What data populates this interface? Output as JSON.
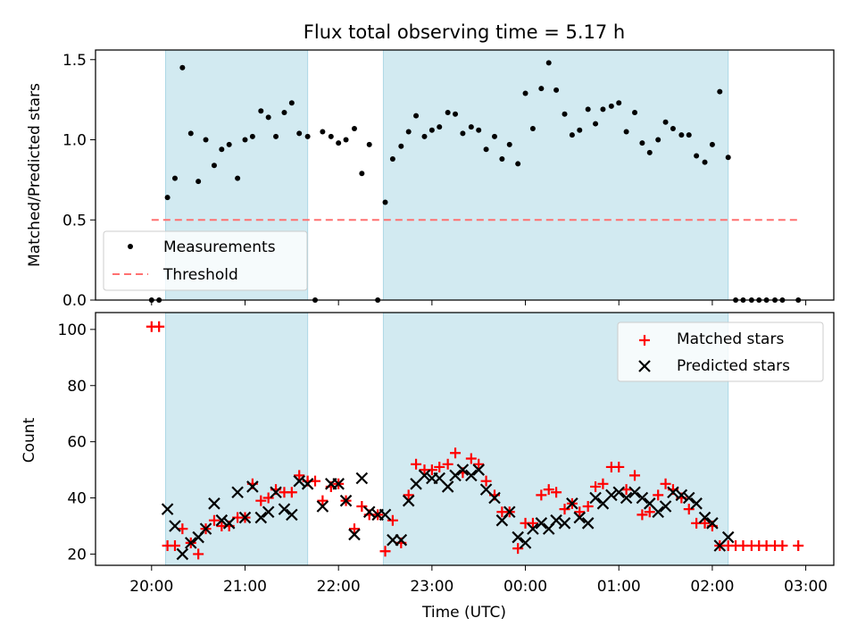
{
  "chart_data": {
    "title": "Flux total observing time = 5.17 h",
    "xlabel": "Time (UTC)",
    "xlim_hours": [
      19.4,
      27.3
    ],
    "xticks": [
      {
        "h": 20,
        "label": "20:00"
      },
      {
        "h": 21,
        "label": "21:00"
      },
      {
        "h": 22,
        "label": "22:00"
      },
      {
        "h": 23,
        "label": "23:00"
      },
      {
        "h": 24,
        "label": "00:00"
      },
      {
        "h": 25,
        "label": "01:00"
      },
      {
        "h": 26,
        "label": "02:00"
      },
      {
        "h": 27,
        "label": "03:00"
      }
    ],
    "shaded_intervals_hours": [
      [
        20.15,
        21.67
      ],
      [
        22.48,
        26.17
      ]
    ],
    "shade_color": "#add8e6",
    "panels": [
      {
        "type": "scatter",
        "ylabel": "Matched/Predicted stars",
        "ylim": [
          0,
          1.56
        ],
        "yticks": [
          {
            "v": 0.0,
            "label": "0.0"
          },
          {
            "v": 0.5,
            "label": "0.5"
          },
          {
            "v": 1.0,
            "label": "1.0"
          },
          {
            "v": 1.5,
            "label": "1.5"
          }
        ],
        "legend": {
          "position": "lower-left",
          "entries": [
            "Measurements",
            "Threshold"
          ]
        },
        "threshold": {
          "name": "Threshold",
          "value": 0.5,
          "x_range": [
            20.0,
            26.92
          ],
          "color": "#ff7070"
        },
        "series": [
          {
            "name": "Measurements",
            "color": "#000000",
            "x": [
              20.0,
              20.08,
              20.17,
              20.25,
              20.33,
              20.42,
              20.5,
              20.58,
              20.67,
              20.75,
              20.83,
              20.92,
              21.0,
              21.08,
              21.17,
              21.25,
              21.33,
              21.42,
              21.5,
              21.58,
              21.67,
              21.75,
              21.83,
              21.92,
              22.0,
              22.08,
              22.17,
              22.25,
              22.33,
              22.42,
              22.5,
              22.58,
              22.67,
              22.75,
              22.83,
              22.92,
              23.0,
              23.08,
              23.17,
              23.25,
              23.33,
              23.42,
              23.5,
              23.58,
              23.67,
              23.75,
              23.83,
              23.92,
              24.0,
              24.08,
              24.17,
              24.25,
              24.33,
              24.42,
              24.5,
              24.58,
              24.67,
              24.75,
              24.83,
              24.92,
              25.0,
              25.08,
              25.17,
              25.25,
              25.33,
              25.42,
              25.5,
              25.58,
              25.67,
              25.75,
              25.83,
              25.92,
              26.0,
              26.08,
              26.17,
              26.25,
              26.33,
              26.42,
              26.5,
              26.58,
              26.67,
              26.75,
              26.92
            ],
            "y": [
              0.0,
              0.0,
              0.64,
              0.76,
              1.45,
              1.04,
              0.74,
              1.0,
              0.84,
              0.94,
              0.97,
              0.76,
              1.0,
              1.02,
              1.18,
              1.14,
              1.02,
              1.17,
              1.23,
              1.04,
              1.02,
              0.0,
              1.05,
              1.02,
              0.98,
              1.0,
              1.07,
              0.79,
              0.97,
              0.0,
              0.61,
              0.88,
              0.96,
              1.05,
              1.15,
              1.02,
              1.06,
              1.08,
              1.17,
              1.16,
              1.04,
              1.08,
              1.06,
              0.94,
              1.02,
              0.88,
              0.97,
              0.85,
              1.29,
              1.07,
              1.32,
              1.48,
              1.31,
              1.16,
              1.03,
              1.06,
              1.19,
              1.1,
              1.19,
              1.21,
              1.23,
              1.05,
              1.17,
              0.98,
              0.92,
              1.0,
              1.11,
              1.07,
              1.03,
              1.03,
              0.9,
              0.86,
              0.97,
              1.3,
              0.89,
              0.0,
              0.0,
              0.0,
              0.0,
              0.0,
              0.0,
              0.0,
              0.0
            ]
          }
        ]
      },
      {
        "type": "scatter",
        "ylabel": "Count",
        "ylim": [
          16,
          106
        ],
        "yticks": [
          {
            "v": 20,
            "label": "20"
          },
          {
            "v": 40,
            "label": "40"
          },
          {
            "v": 60,
            "label": "60"
          },
          {
            "v": 80,
            "label": "80"
          },
          {
            "v": 100,
            "label": "100"
          }
        ],
        "legend": {
          "position": "upper-right",
          "entries": [
            "Matched stars",
            "Predicted stars"
          ]
        },
        "series": [
          {
            "name": "Matched stars",
            "marker": "plus",
            "color": "#ff0000",
            "x": [
              20.0,
              20.08,
              20.17,
              20.25,
              20.33,
              20.42,
              20.5,
              20.58,
              20.67,
              20.75,
              20.83,
              20.92,
              21.0,
              21.08,
              21.17,
              21.25,
              21.33,
              21.42,
              21.5,
              21.58,
              21.67,
              21.75,
              21.83,
              21.92,
              22.0,
              22.08,
              22.17,
              22.25,
              22.33,
              22.42,
              22.5,
              22.58,
              22.67,
              22.75,
              22.83,
              22.92,
              23.0,
              23.08,
              23.17,
              23.25,
              23.33,
              23.42,
              23.5,
              23.58,
              23.67,
              23.75,
              23.83,
              23.92,
              24.0,
              24.08,
              24.17,
              24.25,
              24.33,
              24.42,
              24.5,
              24.58,
              24.67,
              24.75,
              24.83,
              24.92,
              25.0,
              25.08,
              25.17,
              25.25,
              25.33,
              25.42,
              25.5,
              25.58,
              25.67,
              25.75,
              25.83,
              25.92,
              26.0,
              26.08,
              26.17,
              26.25,
              26.33,
              26.42,
              26.5,
              26.58,
              26.67,
              26.75,
              26.92
            ],
            "y": [
              101,
              101,
              23,
              23,
              29,
              24,
              20,
              29,
              32,
              30,
              30,
              33,
              33,
              45,
              39,
              40,
              43,
              42,
              42,
              48,
              46,
              46,
              39,
              44,
              45,
              39,
              29,
              37,
              34,
              34,
              21,
              32,
              24,
              41,
              52,
              50,
              50,
              51,
              52,
              56,
              49,
              54,
              52,
              46,
              41,
              35,
              35,
              22,
              31,
              31,
              41,
              43,
              42,
              36,
              38,
              35,
              37,
              44,
              45,
              51,
              51,
              43,
              48,
              34,
              35,
              41,
              45,
              43,
              40,
              36,
              31,
              31,
              30,
              23,
              23,
              23,
              23,
              23,
              23,
              23,
              23,
              23,
              23
            ]
          },
          {
            "name": "Predicted stars",
            "marker": "x",
            "color": "#000000",
            "x": [
              20.17,
              20.25,
              20.33,
              20.42,
              20.5,
              20.58,
              20.67,
              20.75,
              20.83,
              20.92,
              21.0,
              21.08,
              21.17,
              21.25,
              21.33,
              21.42,
              21.5,
              21.58,
              21.67,
              21.83,
              21.92,
              22.0,
              22.08,
              22.17,
              22.25,
              22.33,
              22.42,
              22.5,
              22.58,
              22.67,
              22.75,
              22.83,
              22.92,
              23.0,
              23.08,
              23.17,
              23.25,
              23.33,
              23.42,
              23.5,
              23.58,
              23.67,
              23.75,
              23.83,
              23.92,
              24.0,
              24.08,
              24.17,
              24.25,
              24.33,
              24.42,
              24.5,
              24.58,
              24.67,
              24.75,
              24.83,
              24.92,
              25.0,
              25.08,
              25.17,
              25.25,
              25.33,
              25.42,
              25.5,
              25.58,
              25.67,
              25.75,
              25.83,
              25.92,
              26.0,
              26.08,
              26.17
            ],
            "y": [
              36,
              30,
              20,
              24,
              26,
              29,
              38,
              32,
              31,
              42,
              33,
              44,
              33,
              35,
              42,
              36,
              34,
              46,
              45,
              37,
              45,
              45,
              39,
              27,
              47,
              35,
              34,
              34,
              25,
              25,
              39,
              45,
              48,
              47,
              47,
              44,
              48,
              50,
              48,
              50,
              43,
              40,
              32,
              35,
              26,
              24,
              29,
              31,
              29,
              32,
              31,
              38,
              33,
              31,
              40,
              38,
              41,
              42,
              40,
              42,
              40,
              38,
              35,
              37,
              42,
              41,
              40,
              38,
              33,
              31,
              23,
              26
            ]
          }
        ]
      }
    ]
  }
}
